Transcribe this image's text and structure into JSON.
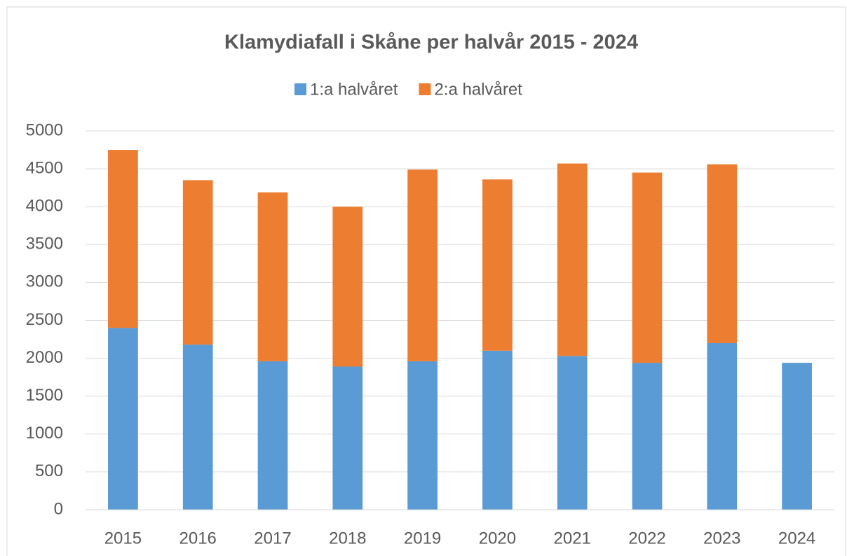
{
  "chart_data": {
    "type": "stacked_bar",
    "title": "Klamydiafall i Skåne per halvår 2015 - 2024",
    "categories": [
      "2015",
      "2016",
      "2017",
      "2018",
      "2019",
      "2020",
      "2021",
      "2022",
      "2023",
      "2024"
    ],
    "series": [
      {
        "name": "1:a halvåret",
        "color": "#5b9bd5",
        "values": [
          2400,
          2180,
          1960,
          1890,
          1960,
          2100,
          2030,
          1940,
          2200,
          1940
        ]
      },
      {
        "name": "2:a halvåret",
        "color": "#ed7d31",
        "values": [
          2350,
          2170,
          2230,
          2110,
          2530,
          2260,
          2540,
          2510,
          2360,
          null
        ]
      }
    ],
    "ylim": [
      0,
      5000
    ],
    "yticks": [
      0,
      500,
      1000,
      1500,
      2000,
      2500,
      3000,
      3500,
      4000,
      4500,
      5000
    ],
    "grid": true,
    "legend": "top"
  }
}
